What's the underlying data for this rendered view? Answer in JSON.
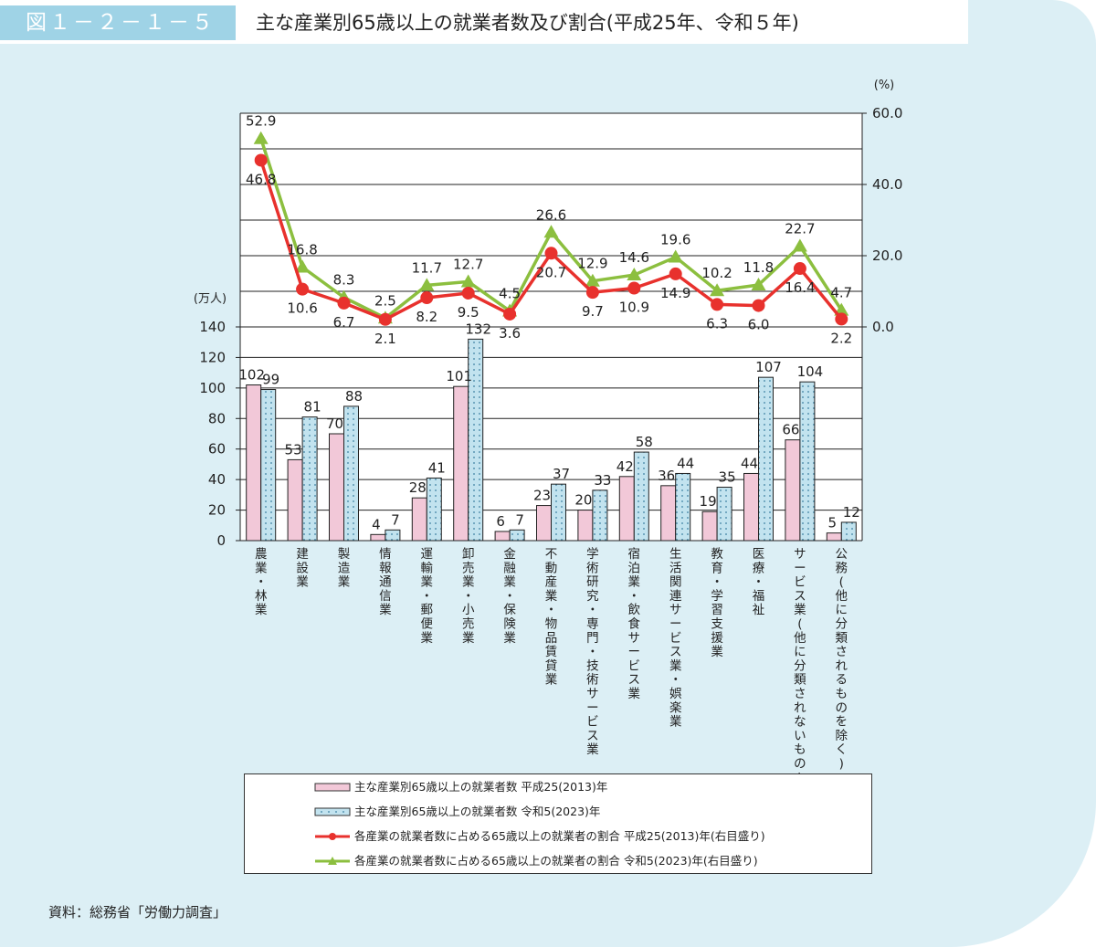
{
  "header": {
    "figure_number": "図１－２－１－５",
    "title": "主な産業別65歳以上の就業者数及び割合(平成25年、令和５年)"
  },
  "source": "資料：総務省「労働力調査」",
  "colors": {
    "bar_2013": "#f2c8d8",
    "bar_2023": "#c2e3ef",
    "line_2013": "#e8312d",
    "line_2023": "#8cbf3f",
    "panel": "#dceff5",
    "fig_tag": "#9fd3e6"
  },
  "legend": [
    {
      "label": "主な産業別65歳以上の就業者数 平成25(2013)年",
      "kind": "bar_2013"
    },
    {
      "label": "主な産業別65歳以上の就業者数 令和5(2023)年",
      "kind": "bar_2023"
    },
    {
      "label": "各産業の就業者数に占める65歳以上の就業者の割合 平成25(2013)年(右目盛り)",
      "kind": "line_2013"
    },
    {
      "label": "各産業の就業者数に占める65歳以上の就業者の割合 令和5(2023)年(右目盛り)",
      "kind": "line_2023"
    }
  ],
  "chart_data": [
    {
      "type": "bar",
      "ylabel": "(万人)",
      "ylim": [
        0,
        140
      ],
      "yticks": [
        "0",
        "20",
        "40",
        "60",
        "80",
        "100",
        "120",
        "140"
      ],
      "categories": [
        "農業・林業",
        "建設業",
        "製造業",
        "情報通信業",
        "運輸業・郵便業",
        "卸売業・小売業",
        "金融業・保険業",
        "不動産業・物品賃貸業",
        "学術研究・専門・技術サービス業",
        "宿泊業・飲食サービス業",
        "生活関連サービス業・娯楽業",
        "教育・学習支援業",
        "医療・福祉",
        "サービス業(他に分類されないもの)",
        "公務(他に分類されるものを除く)"
      ],
      "series": [
        {
          "name": "主な産業別65歳以上の就業者数 平成25(2013)年",
          "values": [
            102,
            53,
            70,
            4,
            28,
            101,
            6,
            23,
            20,
            42,
            36,
            19,
            44,
            66,
            5
          ]
        },
        {
          "name": "主な産業別65歳以上の就業者数 令和5(2023)年",
          "values": [
            99,
            81,
            88,
            7,
            41,
            132,
            7,
            37,
            33,
            58,
            44,
            35,
            107,
            104,
            12
          ]
        }
      ]
    },
    {
      "type": "line",
      "ylabel": "(%)",
      "ylim": [
        0,
        60
      ],
      "yticks": [
        "0.0",
        "20.0",
        "40.0",
        "60.0"
      ],
      "categories": [
        "農業・林業",
        "建設業",
        "製造業",
        "情報通信業",
        "運輸業・郵便業",
        "卸売業・小売業",
        "金融業・保険業",
        "不動産業・物品賃貸業",
        "学術研究・専門・技術サービス業",
        "宿泊業・飲食サービス業",
        "生活関連サービス業・娯楽業",
        "教育・学習支援業",
        "医療・福祉",
        "サービス業(他に分類されないもの)",
        "公務(他に分類されるものを除く)"
      ],
      "series": [
        {
          "name": "各産業の就業者数に占める65歳以上の就業者の割合 平成25(2013)年(右目盛り)",
          "values": [
            46.8,
            10.6,
            6.7,
            2.1,
            8.2,
            9.5,
            3.6,
            20.7,
            9.7,
            10.9,
            14.9,
            6.3,
            6.0,
            16.4,
            2.2
          ]
        },
        {
          "name": "各産業の就業者数に占める65歳以上の就業者の割合 令和5(2023)年(右目盛り)",
          "values": [
            52.9,
            16.8,
            8.3,
            2.5,
            11.7,
            12.7,
            4.5,
            26.6,
            12.9,
            14.6,
            19.6,
            10.2,
            11.8,
            22.7,
            4.7
          ]
        }
      ]
    }
  ]
}
